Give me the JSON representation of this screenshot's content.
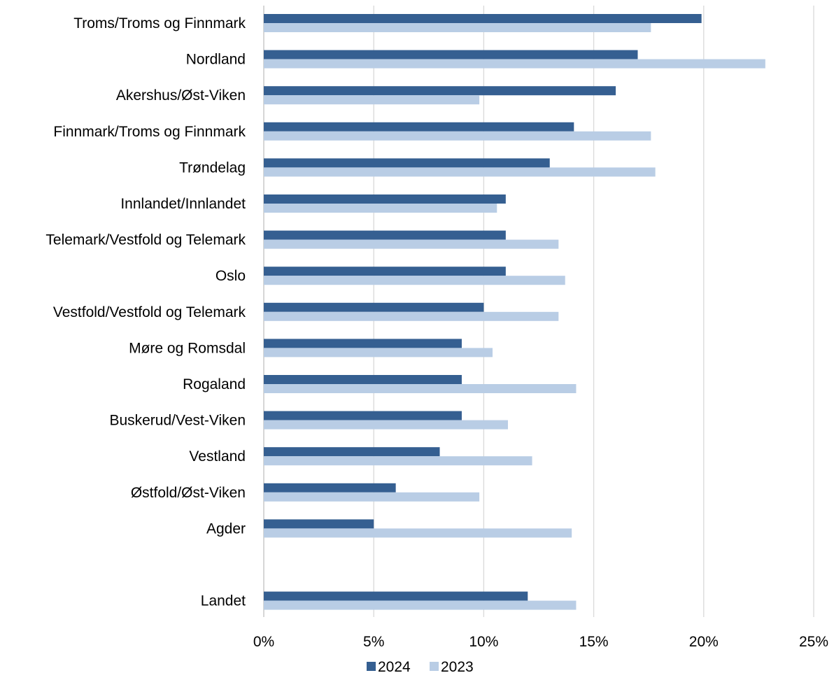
{
  "chart_data": {
    "type": "bar",
    "orientation": "horizontal",
    "categories": [
      "Troms/Troms og Finnmark",
      "Nordland",
      "Akershus/Øst-Viken",
      "Finnmark/Troms og Finnmark",
      "Trøndelag",
      "Innlandet/Innlandet",
      "Telemark/Vestfold og Telemark",
      "Oslo",
      "Vestfold/Vestfold og Telemark",
      "Møre og Romsdal",
      "Rogaland",
      "Buskerud/Vest-Viken",
      "Vestland",
      "Østfold/Øst-Viken",
      "Agder",
      "",
      "Landet"
    ],
    "series": [
      {
        "name": "2024",
        "color": "#355f91",
        "values": [
          19.9,
          17.0,
          16.0,
          14.1,
          13.0,
          11.0,
          11.0,
          11.0,
          10.0,
          9.0,
          9.0,
          9.0,
          8.0,
          6.0,
          5.0,
          null,
          12.0
        ]
      },
      {
        "name": "2023",
        "color": "#b9cde5",
        "values": [
          17.6,
          22.8,
          9.8,
          17.6,
          17.8,
          10.6,
          13.4,
          13.7,
          13.4,
          10.4,
          14.2,
          11.1,
          12.2,
          9.8,
          14.0,
          null,
          14.2
        ]
      }
    ],
    "xlim": [
      0,
      25
    ],
    "xticks": [
      "0%",
      "5%",
      "10%",
      "15%",
      "20%",
      "25%"
    ],
    "grid": true,
    "legend_position": "bottom",
    "title": "",
    "xlabel": "",
    "ylabel": ""
  }
}
